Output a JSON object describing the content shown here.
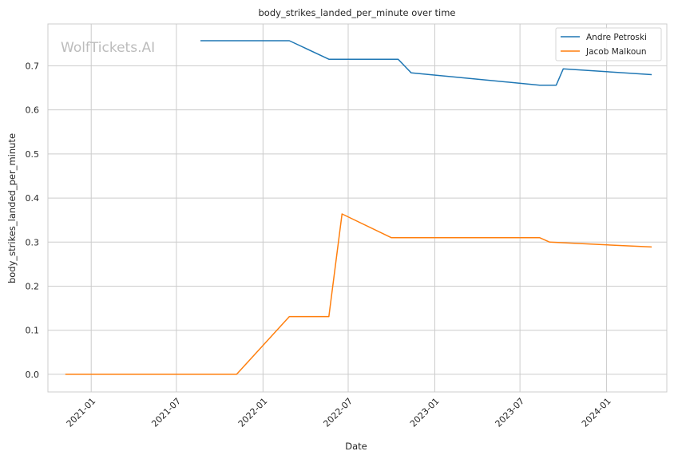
{
  "chart_data": {
    "type": "line",
    "title": "body_strikes_landed_per_minute over time",
    "xlabel": "Date",
    "ylabel": "body_strikes_landed_per_minute",
    "watermark": "WolfTickets.AI",
    "xlim": [
      "2020-10-01",
      "2024-05-08"
    ],
    "ylim": [
      -0.04,
      0.795
    ],
    "yticks": [
      0.0,
      0.1,
      0.2,
      0.3,
      0.4,
      0.5,
      0.6,
      0.7
    ],
    "ytick_labels": [
      "0.0",
      "0.1",
      "0.2",
      "0.3",
      "0.4",
      "0.5",
      "0.6",
      "0.7"
    ],
    "xticks": [
      "2021-01-01",
      "2021-07-01",
      "2022-01-01",
      "2022-07-01",
      "2023-01-01",
      "2023-07-01",
      "2024-01-01"
    ],
    "xtick_labels": [
      "2021-01",
      "2021-07",
      "2022-01",
      "2022-07",
      "2023-01",
      "2023-07",
      "2024-01"
    ],
    "grid": true,
    "legend_position": "top-right",
    "series": [
      {
        "name": "Andre Petroski",
        "color": "#1f77b4",
        "x": [
          "2021-08-21",
          "2022-02-26",
          "2022-05-21",
          "2022-10-15",
          "2022-11-12",
          "2023-08-12",
          "2023-09-16",
          "2023-10-01",
          "2024-04-06"
        ],
        "y": [
          0.757,
          0.757,
          0.715,
          0.715,
          0.684,
          0.656,
          0.656,
          0.693,
          0.68
        ]
      },
      {
        "name": "Jacob Malkoun",
        "color": "#ff7f0e",
        "x": [
          "2020-11-07",
          "2021-11-06",
          "2022-02-26",
          "2022-05-21",
          "2022-06-18",
          "2022-10-01",
          "2023-08-12",
          "2023-09-02",
          "2024-04-06"
        ],
        "y": [
          0.0,
          0.0,
          0.131,
          0.131,
          0.364,
          0.31,
          0.31,
          0.3,
          0.289
        ]
      }
    ]
  }
}
